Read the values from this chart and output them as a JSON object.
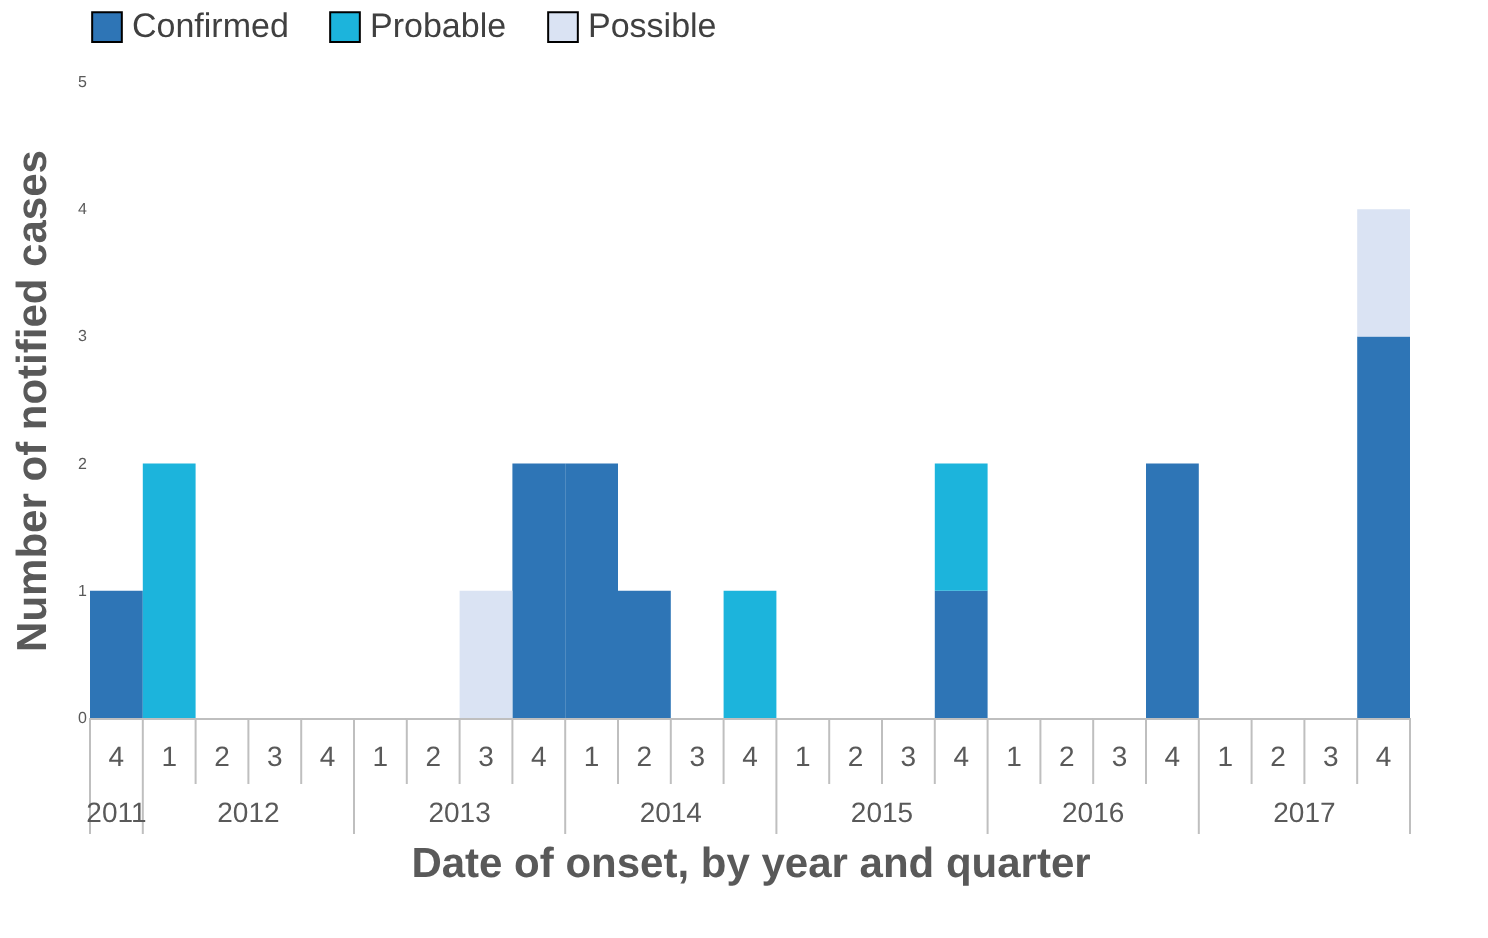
{
  "chart_data": {
    "type": "bar",
    "stacked": true,
    "xlabel": "Date of onset, by year and quarter",
    "ylabel": "Number of notified cases",
    "categories": [
      "4",
      "1",
      "2",
      "3",
      "4",
      "1",
      "2",
      "3",
      "4",
      "1",
      "2",
      "3",
      "4",
      "1",
      "2",
      "3",
      "4",
      "1",
      "2",
      "3",
      "4",
      "1",
      "2",
      "3",
      "4"
    ],
    "series": [
      {
        "name": "Confirmed",
        "color": "#2e75b6",
        "values": [
          1,
          0,
          0,
          0,
          0,
          0,
          0,
          0,
          2,
          2,
          1,
          0,
          0,
          0,
          0,
          0,
          1,
          0,
          0,
          0,
          2,
          0,
          0,
          0,
          3
        ]
      },
      {
        "name": "Probable",
        "color": "#1cb4dc",
        "values": [
          0,
          2,
          0,
          0,
          0,
          0,
          0,
          0,
          0,
          0,
          0,
          0,
          1,
          0,
          0,
          0,
          1,
          0,
          0,
          0,
          0,
          0,
          0,
          0,
          0
        ]
      },
      {
        "name": "Possible",
        "color": "#dae3f3",
        "values": [
          0,
          0,
          0,
          0,
          0,
          0,
          0,
          1,
          0,
          0,
          0,
          0,
          0,
          0,
          0,
          0,
          0,
          0,
          0,
          0,
          0,
          0,
          0,
          0,
          1
        ]
      }
    ],
    "annotations": [
      "2011",
      "2012",
      "2013",
      "2014",
      "2015",
      "2016",
      "2017"
    ],
    "ylim": [
      0,
      5
    ],
    "yticks": [
      0,
      1,
      2,
      3,
      4,
      5
    ],
    "grid": false,
    "legend": "top"
  }
}
